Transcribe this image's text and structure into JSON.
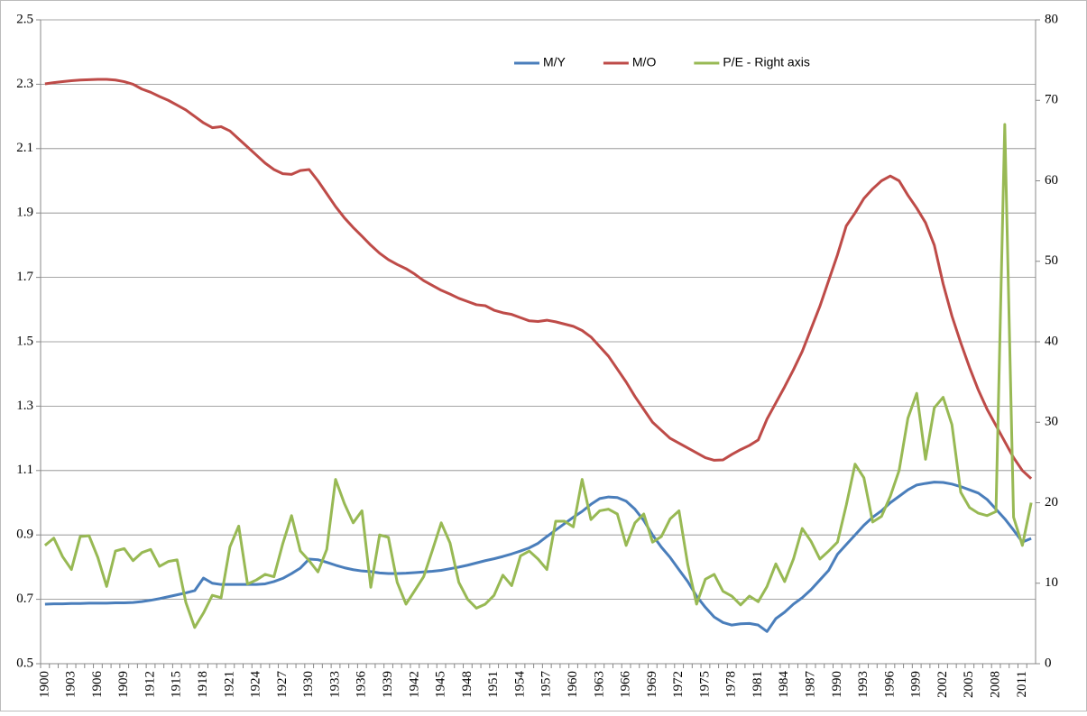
{
  "chart_data": {
    "type": "line",
    "categories": [
      "1900",
      null,
      null,
      "1903",
      null,
      null,
      "1906",
      null,
      null,
      "1909",
      null,
      null,
      "1912",
      null,
      null,
      "1915",
      null,
      null,
      "1918",
      null,
      null,
      "1921",
      null,
      null,
      "1924",
      null,
      null,
      "1927",
      null,
      null,
      "1930",
      null,
      null,
      "1933",
      null,
      null,
      "1936",
      null,
      null,
      "1939",
      null,
      null,
      "1942",
      null,
      null,
      "1945",
      null,
      null,
      "1948",
      null,
      null,
      "1951",
      null,
      null,
      "1954",
      null,
      null,
      "1957",
      null,
      null,
      "1960",
      null,
      null,
      "1963",
      null,
      null,
      "1966",
      null,
      null,
      "1969",
      null,
      null,
      "1972",
      null,
      null,
      "1975",
      null,
      null,
      "1978",
      null,
      null,
      "1981",
      null,
      null,
      "1984",
      null,
      null,
      "1987",
      null,
      null,
      "1990",
      null,
      null,
      "1993",
      null,
      null,
      "1996",
      null,
      null,
      "1999",
      null,
      null,
      "2002",
      null,
      null,
      "2005",
      null,
      null,
      "2008",
      null,
      null,
      "2011",
      null
    ],
    "series": [
      {
        "name": "M/Y",
        "color": "#4a7ebb",
        "values": [
          0.685,
          0.686,
          0.686,
          0.687,
          0.687,
          0.688,
          0.688,
          0.688,
          0.689,
          0.689,
          0.69,
          0.693,
          0.697,
          0.702,
          0.708,
          0.714,
          0.72,
          0.727,
          0.766,
          0.75,
          0.746,
          0.746,
          0.746,
          0.746,
          0.746,
          0.748,
          0.755,
          0.765,
          0.78,
          0.797,
          0.825,
          0.823,
          0.815,
          0.806,
          0.798,
          0.792,
          0.788,
          0.786,
          0.782,
          0.78,
          0.78,
          0.781,
          0.783,
          0.785,
          0.787,
          0.79,
          0.795,
          0.8,
          0.806,
          0.813,
          0.82,
          0.826,
          0.833,
          0.841,
          0.85,
          0.86,
          0.874,
          0.895,
          0.915,
          0.935,
          0.955,
          0.973,
          0.995,
          1.013,
          1.018,
          1.016,
          1.005,
          0.98,
          0.945,
          0.9,
          0.862,
          0.83,
          0.792,
          0.755,
          0.71,
          0.675,
          0.645,
          0.628,
          0.62,
          0.624,
          0.625,
          0.62,
          0.6,
          0.64,
          0.66,
          0.685,
          0.705,
          0.73,
          0.76,
          0.79,
          0.84,
          0.87,
          0.9,
          0.93,
          0.955,
          0.975,
          1.0,
          1.02,
          1.04,
          1.055,
          1.06,
          1.064,
          1.063,
          1.058,
          1.05,
          1.04,
          1.03,
          1.01,
          0.98,
          0.95,
          0.915,
          0.878,
          0.889
        ]
      },
      {
        "name": "M/O",
        "color": "#be4b48",
        "values": [
          2.301,
          2.305,
          2.308,
          2.311,
          2.313,
          2.314,
          2.315,
          2.315,
          2.313,
          2.308,
          2.3,
          2.285,
          2.275,
          2.262,
          2.25,
          2.235,
          2.22,
          2.2,
          2.18,
          2.165,
          2.168,
          2.155,
          2.13,
          2.105,
          2.08,
          2.055,
          2.035,
          2.022,
          2.02,
          2.032,
          2.035,
          2.0,
          1.96,
          1.92,
          1.885,
          1.855,
          1.828,
          1.8,
          1.775,
          1.755,
          1.74,
          1.727,
          1.71,
          1.69,
          1.675,
          1.66,
          1.648,
          1.635,
          1.625,
          1.615,
          1.612,
          1.598,
          1.59,
          1.585,
          1.575,
          1.565,
          1.563,
          1.567,
          1.562,
          1.555,
          1.548,
          1.535,
          1.515,
          1.485,
          1.455,
          1.415,
          1.375,
          1.33,
          1.29,
          1.25,
          1.225,
          1.2,
          1.185,
          1.17,
          1.155,
          1.14,
          1.132,
          1.133,
          1.15,
          1.165,
          1.178,
          1.195,
          1.26,
          1.31,
          1.36,
          1.413,
          1.47,
          1.54,
          1.61,
          1.69,
          1.77,
          1.86,
          1.9,
          1.945,
          1.975,
          2.0,
          2.015,
          2.0,
          1.955,
          1.915,
          1.87,
          1.8,
          1.68,
          1.58,
          1.497,
          1.42,
          1.35,
          1.29,
          1.24,
          1.19,
          1.14,
          1.1,
          1.075
        ]
      },
      {
        "name": "P/E - Right axis",
        "color": "#98b954",
        "axis": "y2",
        "values": [
          14.7,
          15.6,
          13.3,
          11.7,
          15.8,
          15.9,
          13.2,
          9.6,
          14,
          14.3,
          12.8,
          13.8,
          14.2,
          12.1,
          12.7,
          12.9,
          7.6,
          4.5,
          6.3,
          8.5,
          8.2,
          14.5,
          17.1,
          9.9,
          10.4,
          11.1,
          10.8,
          14.9,
          18.4,
          14,
          12.8,
          11.4,
          14.2,
          22.9,
          19.9,
          17.5,
          19,
          9.5,
          16,
          15.7,
          10.1,
          7.4,
          9.1,
          10.8,
          14.1,
          17.5,
          15,
          10.1,
          8,
          6.9,
          7.4,
          8.5,
          11,
          9.7,
          13.4,
          14,
          13,
          11.7,
          17.7,
          17.7,
          17,
          22.9,
          17.9,
          19,
          19.2,
          18.6,
          14.7,
          17.5,
          18.6,
          15.1,
          15.8,
          18,
          19,
          12.3,
          7.4,
          10.5,
          11.1,
          9,
          8.4,
          7.3,
          8.4,
          7.7,
          9.6,
          12.4,
          10.2,
          13,
          16.8,
          15.2,
          13,
          14,
          15.1,
          19.7,
          24.8,
          23.1,
          17.6,
          18.3,
          20.8,
          24,
          30.5,
          33.6,
          25.4,
          31.8,
          33.1,
          29.7,
          21.3,
          19.4,
          18.7,
          18.4,
          18.9,
          67,
          18.2,
          14.7,
          20
        ]
      }
    ],
    "ylim": [
      0.5,
      2.5
    ],
    "yticks": [
      0.5,
      0.7,
      0.9,
      1.1,
      1.3,
      1.5,
      1.7,
      1.9,
      2.1,
      2.3,
      2.5
    ],
    "y2lim": [
      0,
      80
    ],
    "y2ticks": [
      0,
      10,
      20,
      30,
      40,
      50,
      60,
      70,
      80
    ],
    "grid": true,
    "legend": "top"
  }
}
